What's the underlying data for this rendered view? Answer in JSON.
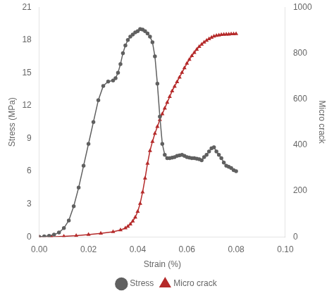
{
  "chart_data": {
    "type": "line",
    "xlabel": "Strain (%)",
    "ylabel": "Stress (MPa)",
    "y2label": "Micro crack",
    "xlim": [
      0.0,
      0.1
    ],
    "ylim": [
      0,
      21
    ],
    "y2lim": [
      0,
      1000
    ],
    "xticks": [
      {
        "value": 0.0,
        "label": "0.00"
      },
      0.02,
      0.04,
      0.06,
      0.08,
      {
        "value": 0.1,
        "label": "0.10"
      }
    ],
    "yticks": [
      0,
      3,
      6,
      9,
      12,
      15,
      18,
      21
    ],
    "y2ticks": [
      0,
      200,
      400,
      600,
      800,
      1000
    ],
    "grid": false,
    "legend": "bottom",
    "series": [
      {
        "name": "Stress",
        "color": "#606060",
        "marker": "circle",
        "axis": "y",
        "x": [
          0.0,
          0.002,
          0.004,
          0.006,
          0.008,
          0.01,
          0.012,
          0.014,
          0.016,
          0.018,
          0.02,
          0.022,
          0.024,
          0.026,
          0.028,
          0.03,
          0.031,
          0.032,
          0.033,
          0.034,
          0.035,
          0.036,
          0.037,
          0.038,
          0.039,
          0.04,
          0.041,
          0.042,
          0.043,
          0.044,
          0.045,
          0.046,
          0.047,
          0.048,
          0.049,
          0.05,
          0.051,
          0.052,
          0.053,
          0.054,
          0.055,
          0.056,
          0.057,
          0.058,
          0.059,
          0.06,
          0.061,
          0.062,
          0.063,
          0.064,
          0.065,
          0.066,
          0.067,
          0.068,
          0.069,
          0.07,
          0.071,
          0.072,
          0.073,
          0.074,
          0.075,
          0.076,
          0.077,
          0.078,
          0.079,
          0.08
        ],
        "values": [
          0.0,
          0.05,
          0.1,
          0.2,
          0.4,
          0.8,
          1.5,
          2.8,
          4.5,
          6.5,
          8.5,
          10.5,
          12.5,
          13.8,
          14.2,
          14.3,
          14.5,
          15.0,
          15.8,
          16.8,
          17.5,
          18.0,
          18.3,
          18.5,
          18.7,
          18.8,
          19.0,
          18.95,
          18.8,
          18.6,
          18.3,
          17.8,
          16.5,
          14.0,
          11.0,
          8.5,
          7.5,
          7.2,
          7.2,
          7.25,
          7.3,
          7.4,
          7.45,
          7.5,
          7.4,
          7.3,
          7.25,
          7.2,
          7.2,
          7.15,
          7.1,
          7.0,
          7.3,
          7.5,
          7.8,
          8.1,
          8.2,
          7.8,
          7.5,
          7.2,
          6.8,
          6.5,
          6.4,
          6.3,
          6.1,
          6.0
        ]
      },
      {
        "name": "Micro crack",
        "color": "#b52a2a",
        "marker": "triangle",
        "axis": "y2",
        "x": [
          0.0,
          0.005,
          0.01,
          0.015,
          0.02,
          0.025,
          0.03,
          0.033,
          0.035,
          0.036,
          0.037,
          0.038,
          0.039,
          0.04,
          0.041,
          0.042,
          0.043,
          0.044,
          0.045,
          0.046,
          0.047,
          0.048,
          0.049,
          0.05,
          0.051,
          0.052,
          0.053,
          0.054,
          0.055,
          0.056,
          0.057,
          0.058,
          0.059,
          0.06,
          0.061,
          0.062,
          0.063,
          0.064,
          0.065,
          0.066,
          0.067,
          0.068,
          0.069,
          0.07,
          0.071,
          0.072,
          0.073,
          0.074,
          0.075,
          0.076,
          0.077,
          0.078,
          0.079,
          0.08
        ],
        "values": [
          0,
          0,
          2,
          5,
          10,
          15,
          22,
          30,
          38,
          45,
          55,
          68,
          85,
          110,
          145,
          195,
          255,
          320,
          375,
          415,
          450,
          480,
          510,
          535,
          560,
          585,
          610,
          635,
          655,
          675,
          695,
          715,
          735,
          755,
          772,
          788,
          802,
          816,
          828,
          838,
          847,
          855,
          862,
          868,
          873,
          876,
          878,
          880,
          881,
          882,
          882,
          883,
          883,
          884
        ]
      }
    ]
  }
}
